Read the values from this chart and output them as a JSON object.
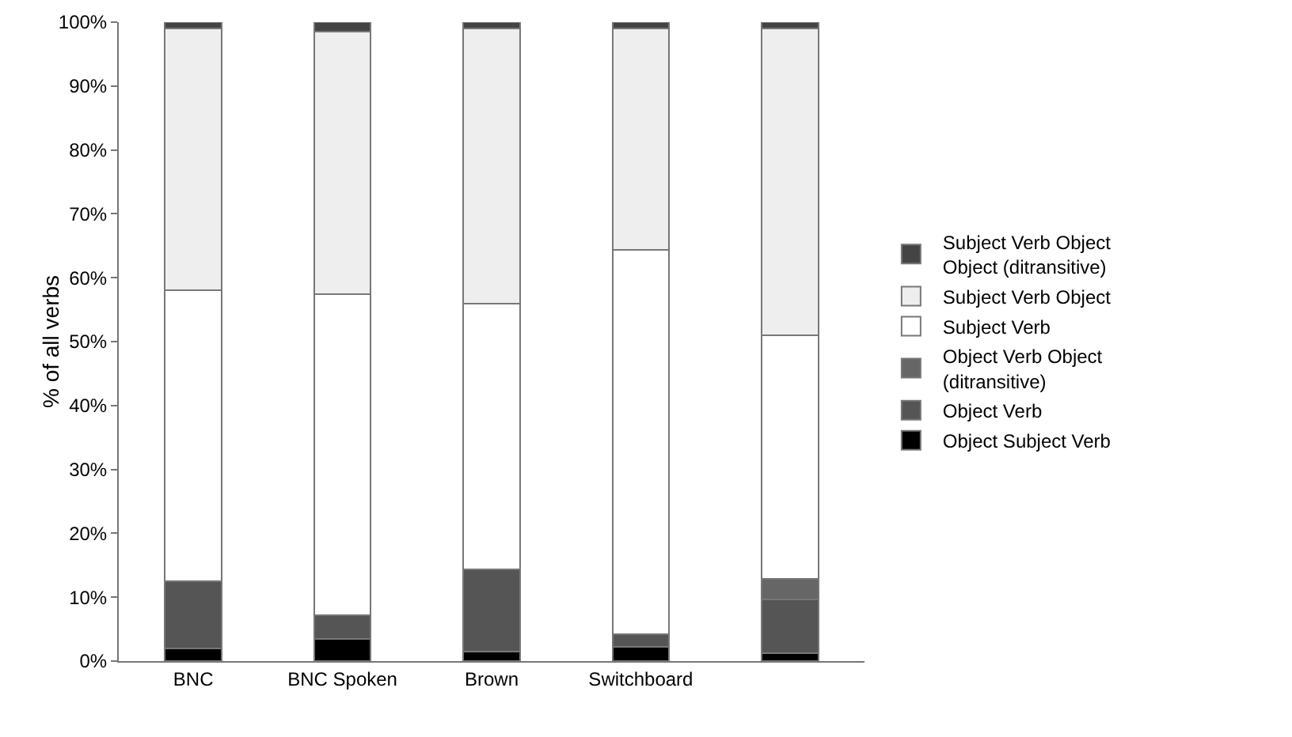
{
  "chart_data": {
    "type": "bar",
    "stacked": true,
    "ylabel": "% of all verbs",
    "categories": [
      "BNC",
      "BNC Spoken",
      "Brown",
      "Switchboard",
      null
    ],
    "series": [
      {
        "name": "Object Subject Verb",
        "color": "#000000",
        "values": [
          2,
          3.5,
          1.5,
          2.2,
          1.2
        ]
      },
      {
        "name": "Object Verb",
        "color": "#555555",
        "values": [
          10.5,
          3.7,
          12.9,
          2.0,
          8.4
        ]
      },
      {
        "name": "Object Verb Object (ditransitive)",
        "color": "#666666",
        "values": [
          0,
          0,
          0,
          0,
          3.3
        ]
      },
      {
        "name": "Subject Verb",
        "color": "#ffffff",
        "values": [
          45.5,
          50.2,
          41.6,
          60.1,
          38.1
        ]
      },
      {
        "name": "Subject Verb Object",
        "color": "#eeeeee",
        "values": [
          41,
          41.1,
          43,
          34.7,
          48
        ]
      },
      {
        "name": "Subject Verb Object Object (ditransitive)",
        "color": "#444444",
        "values": [
          1,
          1.5,
          1,
          1,
          1
        ]
      }
    ],
    "ylim": [
      0,
      100
    ],
    "yticks": [
      {
        "value": 0,
        "label": "0%"
      },
      {
        "value": 10,
        "label": "10%"
      },
      {
        "value": 20,
        "label": "20%"
      },
      {
        "value": 30,
        "label": "30%"
      },
      {
        "value": 40,
        "label": "40%"
      },
      {
        "value": 50,
        "label": "50%"
      },
      {
        "value": 60,
        "label": "60%"
      },
      {
        "value": 70,
        "label": "70%"
      },
      {
        "value": 80,
        "label": "80%"
      },
      {
        "value": 90,
        "label": "90%"
      },
      {
        "value": 100,
        "label": "100%"
      }
    ],
    "grid": false,
    "legend": "right"
  }
}
